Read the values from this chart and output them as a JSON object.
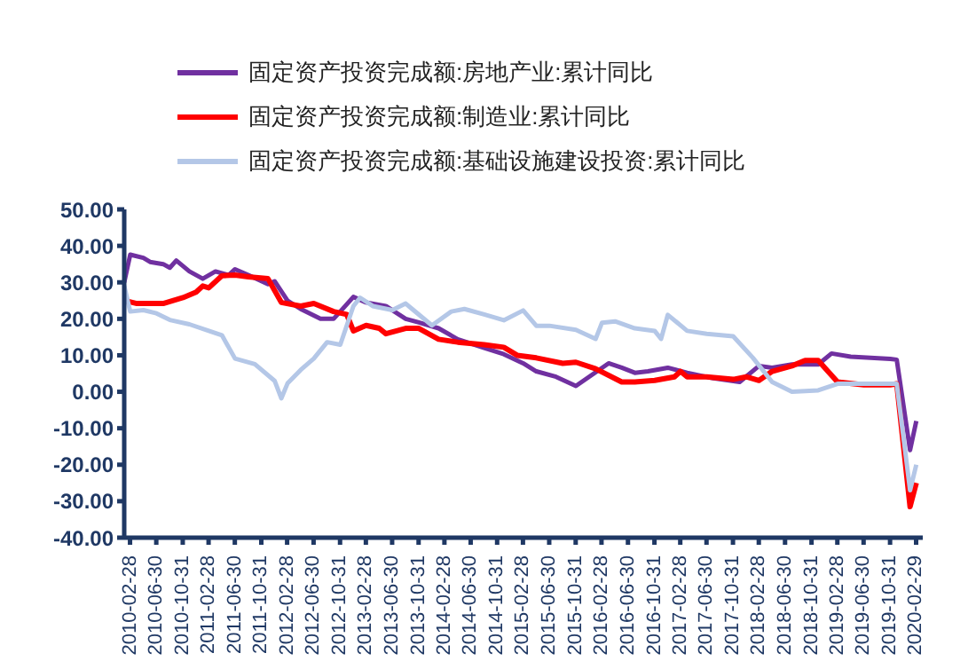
{
  "chart_data": {
    "type": "line",
    "series": [
      {
        "name": "固定资产投资完成额:房地产业:累计同比",
        "color": "#7030a0",
        "x": [
          "2010-02",
          "2010-03",
          "2010-05",
          "2010-06",
          "2010-08",
          "2010-09",
          "2010-10",
          "2010-12",
          "2011-02",
          "2011-04",
          "2011-06",
          "2011-07",
          "2011-09",
          "2011-12",
          "2012-01",
          "2012-03",
          "2012-05",
          "2012-08",
          "2012-10",
          "2012-11",
          "2013-01",
          "2013-03",
          "2013-06",
          "2013-09",
          "2013-11",
          "2014-02",
          "2014-05",
          "2014-09",
          "2014-12",
          "2015-03",
          "2015-05",
          "2015-08",
          "2015-11",
          "2016-01",
          "2016-04",
          "2016-06",
          "2016-08",
          "2016-10",
          "2017-01",
          "2017-04",
          "2017-08",
          "2017-12",
          "2018-03",
          "2018-05",
          "2018-08",
          "2018-12",
          "2019-02",
          "2019-05",
          "2019-08",
          "2019-11",
          "2019-12",
          "2020-02",
          "2020-03"
        ],
        "values": [
          30,
          37.6,
          36.7,
          35.6,
          35,
          34,
          36,
          33,
          31,
          33,
          32,
          33.6,
          32,
          29.5,
          30.3,
          25,
          22.7,
          20,
          20,
          22,
          26,
          24.5,
          23.5,
          20,
          19,
          17.4,
          14.4,
          12,
          10.3,
          7.8,
          5.6,
          4.1,
          1.6,
          4.1,
          7.8,
          6.6,
          5.2,
          5.6,
          6.6,
          5.2,
          3.7,
          2.7,
          7.1,
          6.6,
          7.5,
          7.5,
          10.5,
          9.6,
          9.3,
          9,
          8.8,
          -16,
          -8
        ]
      },
      {
        "name": "固定资产投资完成额:制造业:累计同比",
        "color": "#ff0000",
        "x": [
          "2010-02",
          "2010-04",
          "2010-08",
          "2010-11",
          "2011-01",
          "2011-02",
          "2011-03",
          "2011-05",
          "2011-07",
          "2011-09",
          "2011-12",
          "2012-02",
          "2012-05",
          "2012-07",
          "2012-10",
          "2012-12",
          "2013-01",
          "2013-03",
          "2013-05",
          "2013-06",
          "2013-09",
          "2013-11",
          "2014-02",
          "2014-05",
          "2014-09",
          "2014-12",
          "2015-02",
          "2015-05",
          "2015-09",
          "2015-11",
          "2016-02",
          "2016-06",
          "2016-08",
          "2016-11",
          "2017-02",
          "2017-03",
          "2017-04",
          "2017-07",
          "2017-11",
          "2018-01",
          "2018-03",
          "2018-05",
          "2018-08",
          "2018-10",
          "2018-12",
          "2019-03",
          "2019-07",
          "2019-11",
          "2019-12",
          "2020-02",
          "2020-03"
        ],
        "values": [
          25,
          24.2,
          24.2,
          25.8,
          27.3,
          29,
          28.5,
          31.8,
          32,
          31.5,
          31,
          24.5,
          23.5,
          24.2,
          22,
          21.2,
          16.7,
          18.2,
          17.4,
          15.9,
          17.4,
          17.4,
          14.4,
          13.6,
          12.9,
          12.2,
          10,
          9.3,
          7.8,
          8.1,
          6.3,
          2.7,
          2.7,
          3.1,
          4.1,
          5.6,
          4.1,
          4.1,
          3.4,
          4.1,
          3.1,
          5.6,
          7.1,
          8.6,
          8.6,
          2.7,
          1.9,
          1.9,
          2.2,
          -31.5,
          -25
        ]
      },
      {
        "name": "固定资产投资完成额:基础设施建设投资:累计同比",
        "color": "#b4c7e7",
        "x": [
          "2010-02",
          "2010-03",
          "2010-05",
          "2010-07",
          "2010-09",
          "2010-12",
          "2011-03",
          "2011-05",
          "2011-07",
          "2011-10",
          "2012-01",
          "2012-02",
          "2012-03",
          "2012-05",
          "2012-07",
          "2012-09",
          "2012-11",
          "2013-01",
          "2013-02",
          "2013-04",
          "2013-07",
          "2013-09",
          "2013-10",
          "2014-01",
          "2014-04",
          "2014-06",
          "2014-09",
          "2014-12",
          "2015-03",
          "2015-05",
          "2015-07",
          "2015-11",
          "2016-02",
          "2016-03",
          "2016-05",
          "2016-08",
          "2016-11",
          "2016-12",
          "2017-01",
          "2017-04",
          "2017-07",
          "2017-11",
          "2018-02",
          "2018-05",
          "2018-08",
          "2018-12",
          "2019-03",
          "2019-07",
          "2019-12",
          "2020-02",
          "2020-03"
        ],
        "values": [
          29,
          22,
          22.4,
          21.5,
          19.7,
          18.5,
          16.7,
          15.5,
          9.1,
          7.6,
          3,
          -1.8,
          2.3,
          6,
          9.1,
          13.6,
          12.9,
          23.5,
          25.8,
          23.5,
          22.4,
          24.2,
          22.7,
          18.2,
          22,
          22.7,
          21.2,
          19.6,
          22.3,
          18.1,
          18.1,
          17,
          14.5,
          18.9,
          19.3,
          17.4,
          16.7,
          14.5,
          21.1,
          16.7,
          15.9,
          15.2,
          9.3,
          2.7,
          0,
          0.4,
          2.2,
          2.2,
          2.2,
          -27,
          -20
        ]
      }
    ],
    "xlim": [
      "2010-02-01",
      "2020-03-31"
    ],
    "xticks": [
      "2010-02-28",
      "2010-06-30",
      "2010-10-31",
      "2011-02-28",
      "2011-06-30",
      "2011-10-31",
      "2012-02-28",
      "2012-06-30",
      "2012-10-31",
      "2013-02-28",
      "2013-06-30",
      "2013-10-31",
      "2014-02-28",
      "2014-06-30",
      "2014-10-31",
      "2015-02-28",
      "2015-06-30",
      "2015-10-31",
      "2016-02-28",
      "2016-06-30",
      "2016-10-31",
      "2017-02-28",
      "2017-06-30",
      "2017-10-31",
      "2018-02-28",
      "2018-06-30",
      "2018-10-31",
      "2019-02-28",
      "2019-06-30",
      "2019-10-31",
      "2020-02-29"
    ],
    "ylim": [
      -40,
      50
    ],
    "yticks": [
      {
        "value": -40,
        "label": "-40.00"
      },
      {
        "value": -30,
        "label": "-30.00"
      },
      {
        "value": -20,
        "label": "-20.00"
      },
      {
        "value": -10,
        "label": "-10.00"
      },
      {
        "value": 0,
        "label": "0.00"
      },
      {
        "value": 10,
        "label": "10.00"
      },
      {
        "value": 20,
        "label": "20.00"
      },
      {
        "value": 30,
        "label": "30.00"
      },
      {
        "value": 40,
        "label": "40.00"
      },
      {
        "value": 50,
        "label": "50.00"
      }
    ],
    "grid": false,
    "legend": "top left",
    "marker": "none",
    "line_style": "solid"
  }
}
